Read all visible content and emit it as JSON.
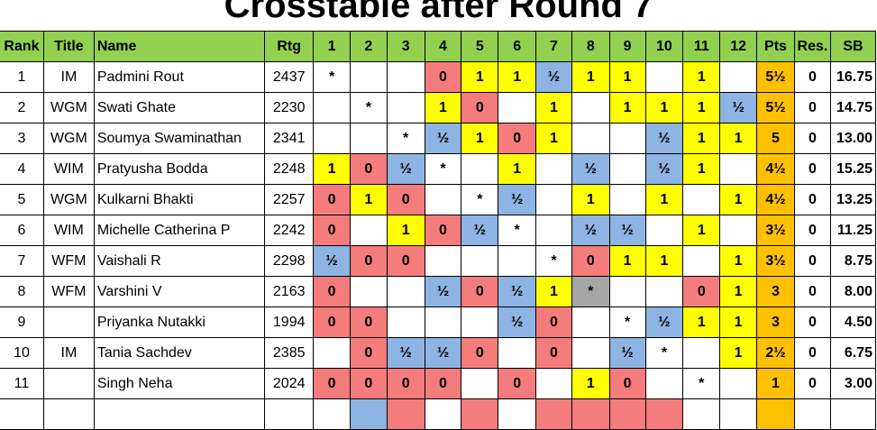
{
  "title": "Crosstable after Round 7",
  "colors": {
    "win": "#ffff00",
    "loss": "#f47c7c",
    "draw": "#8db4e2",
    "points": "#ffc000",
    "header": "#92d050",
    "self_gray": "#a6a6a6"
  },
  "headers": [
    "Rank",
    "Title",
    "Name",
    "Rtg",
    "1",
    "2",
    "3",
    "4",
    "5",
    "6",
    "7",
    "8",
    "9",
    "10",
    "11",
    "12",
    "Pts",
    "Res.",
    "SB"
  ],
  "rows": [
    {
      "rank": "1",
      "title": "IM",
      "name": "Padmini Rout",
      "rtg": "2437",
      "results": [
        "*",
        "",
        "",
        "0",
        "1",
        "1",
        "½",
        "1",
        "1",
        "",
        "1",
        ""
      ],
      "pts": "5½",
      "res": "0",
      "sb": "16.75"
    },
    {
      "rank": "2",
      "title": "WGM",
      "name": "Swati Ghate",
      "rtg": "2230",
      "results": [
        "",
        "*",
        "",
        "1",
        "0",
        "",
        "1",
        "",
        "1",
        "1",
        "1",
        "½"
      ],
      "pts": "5½",
      "res": "0",
      "sb": "14.75"
    },
    {
      "rank": "3",
      "title": "WGM",
      "name": "Soumya Swaminathan",
      "rtg": "2341",
      "results": [
        "",
        "",
        "*",
        "½",
        "1",
        "0",
        "1",
        "",
        "",
        "½",
        "1",
        "1"
      ],
      "pts": "5",
      "res": "0",
      "sb": "13.00"
    },
    {
      "rank": "4",
      "title": "WIM",
      "name": "Pratyusha Bodda",
      "rtg": "2248",
      "results": [
        "1",
        "0",
        "½",
        "*",
        "",
        "1",
        "",
        "½",
        "",
        "½",
        "1",
        ""
      ],
      "pts": "4½",
      "res": "0",
      "sb": "15.25"
    },
    {
      "rank": "5",
      "title": "WGM",
      "name": "Kulkarni Bhakti",
      "rtg": "2257",
      "results": [
        "0",
        "1",
        "0",
        "",
        "*",
        "½",
        "",
        "1",
        "",
        "1",
        "",
        "1"
      ],
      "pts": "4½",
      "res": "0",
      "sb": "13.25"
    },
    {
      "rank": "6",
      "title": "WIM",
      "name": "Michelle Catherina P",
      "rtg": "2242",
      "results": [
        "0",
        "",
        "1",
        "0",
        "½",
        "*",
        "",
        "½",
        "½",
        "",
        "1",
        ""
      ],
      "pts": "3½",
      "res": "0",
      "sb": "11.25"
    },
    {
      "rank": "7",
      "title": "WFM",
      "name": "Vaishali R",
      "rtg": "2298",
      "results": [
        "½",
        "0",
        "0",
        "",
        "",
        "",
        "*",
        "0",
        "1",
        "1",
        "",
        "1"
      ],
      "pts": "3½",
      "res": "0",
      "sb": "8.75"
    },
    {
      "rank": "8",
      "title": "WFM",
      "name": "Varshini V",
      "rtg": "2163",
      "results": [
        "0",
        "",
        "",
        "½",
        "0",
        "½",
        "1",
        "*",
        "",
        "",
        "0",
        "1"
      ],
      "pts": "3",
      "res": "0",
      "sb": "8.00",
      "gray_self": true
    },
    {
      "rank": "9",
      "title": "",
      "name": "Priyanka Nutakki",
      "rtg": "1994",
      "results": [
        "0",
        "0",
        "",
        "",
        "",
        "½",
        "0",
        "",
        "*",
        "½",
        "1",
        "1"
      ],
      "pts": "3",
      "res": "0",
      "sb": "4.50"
    },
    {
      "rank": "10",
      "title": "IM",
      "name": "Tania Sachdev",
      "rtg": "2385",
      "results": [
        "",
        "0",
        "½",
        "½",
        "0",
        "",
        "0",
        "",
        "½",
        "*",
        "",
        "1"
      ],
      "pts": "2½",
      "res": "0",
      "sb": "6.75"
    },
    {
      "rank": "11",
      "title": "",
      "name": "Singh Neha",
      "rtg": "2024",
      "results": [
        "0",
        "0",
        "0",
        "0",
        "",
        "0",
        "",
        "1",
        "0",
        "",
        "*",
        ""
      ],
      "pts": "1",
      "res": "0",
      "sb": "3.00"
    }
  ],
  "partial_row_colors": [
    "",
    "draw",
    "loss",
    "",
    "loss",
    "",
    "loss",
    "loss",
    "loss",
    "loss",
    "",
    ""
  ]
}
